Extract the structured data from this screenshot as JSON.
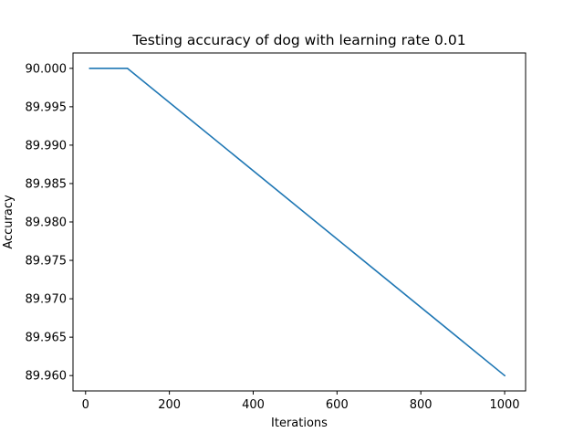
{
  "chart_data": {
    "type": "line",
    "title": "Testing accuracy of dog with learning rate 0.01",
    "xlabel": "Iterations",
    "ylabel": "Accuracy",
    "xlim": [
      -30,
      1050
    ],
    "ylim": [
      89.958,
      90.002
    ],
    "xticks": [
      0,
      200,
      400,
      600,
      800,
      1000
    ],
    "yticks": [
      89.96,
      89.965,
      89.97,
      89.975,
      89.98,
      89.985,
      89.99,
      89.995,
      90.0
    ],
    "ytick_labels": [
      "89.960",
      "89.965",
      "89.970",
      "89.975",
      "89.980",
      "89.985",
      "89.990",
      "89.995",
      "90.000"
    ],
    "grid": false,
    "series": [
      {
        "color": "#1f77b4",
        "x": [
          10,
          100,
          1000
        ],
        "y": [
          90.0,
          90.0,
          89.96
        ]
      }
    ]
  }
}
